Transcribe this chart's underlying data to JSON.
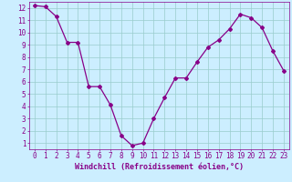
{
  "x": [
    0,
    1,
    2,
    3,
    4,
    5,
    6,
    7,
    8,
    9,
    10,
    11,
    12,
    13,
    14,
    15,
    16,
    17,
    18,
    19,
    20,
    21,
    22,
    23
  ],
  "y": [
    12.2,
    12.1,
    11.3,
    9.2,
    9.2,
    5.6,
    5.6,
    4.1,
    1.6,
    0.8,
    1.0,
    3.0,
    4.7,
    6.3,
    6.3,
    7.6,
    8.8,
    9.4,
    10.3,
    11.5,
    11.2,
    10.4,
    8.5,
    6.9
  ],
  "line_color": "#880088",
  "marker": "D",
  "marker_size": 2.0,
  "linewidth": 0.9,
  "bg_color": "#cceeff",
  "grid_color": "#99cccc",
  "xlabel": "Windchill (Refroidissement éolien,°C)",
  "xlabel_fontsize": 6.0,
  "tick_fontsize": 5.5,
  "xlim": [
    -0.5,
    23.5
  ],
  "ylim": [
    0.5,
    12.5
  ],
  "yticks": [
    1,
    2,
    3,
    4,
    5,
    6,
    7,
    8,
    9,
    10,
    11,
    12
  ],
  "xticks": [
    0,
    1,
    2,
    3,
    4,
    5,
    6,
    7,
    8,
    9,
    10,
    11,
    12,
    13,
    14,
    15,
    16,
    17,
    18,
    19,
    20,
    21,
    22,
    23
  ]
}
